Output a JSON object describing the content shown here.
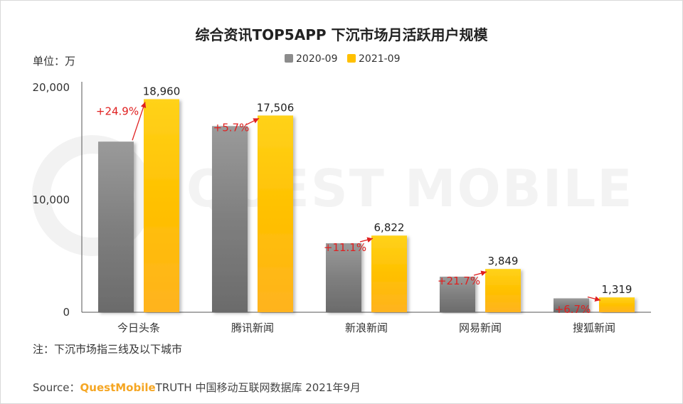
{
  "chart_data": {
    "type": "bar",
    "title": "综合资讯TOP5APP 下沉市场月活跃用户规模",
    "ylabel": "单位：万",
    "ylim": [
      0,
      20000
    ],
    "yticks": [
      "0",
      "10,000",
      "20,000"
    ],
    "yticks_values": [
      0,
      10000,
      20000
    ],
    "categories": [
      "今日头条",
      "腾讯新闻",
      "新浪新闻",
      "网易新闻",
      "搜狐新闻"
    ],
    "series": [
      {
        "name": "2020-09",
        "values": [
          15180,
          16563,
          6140,
          3163,
          1236
        ],
        "color": "#8c8c8c"
      },
      {
        "name": "2021-09",
        "values": [
          18960,
          17506,
          6822,
          3849,
          1319
        ],
        "value_labels": [
          "18,960",
          "17,506",
          "6,822",
          "3,849",
          "1,319"
        ],
        "color": "#ffc000"
      }
    ],
    "growth_labels": [
      "+24.9%",
      "+5.7%",
      "+11.1%",
      "+21.7%",
      "+6.7%"
    ],
    "growth_color": "#e02020"
  },
  "note": "注：下沉市场指三线及以下城市",
  "source": {
    "prefix": "Source：",
    "brand": "QuestMobile",
    "rest": "TRUTH 中国移动互联网数据库 2021年9月"
  },
  "watermark": "QUEST MOBILE"
}
